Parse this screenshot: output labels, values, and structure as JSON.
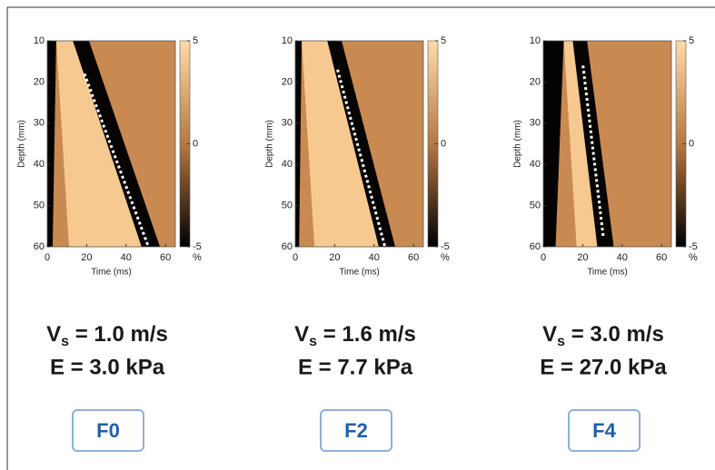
{
  "chart_data": [
    {
      "type": "heatmap",
      "xlabel": "Time (ms)",
      "ylabel": "Depth (mm)",
      "xlim": [
        0,
        65
      ],
      "ylim": [
        10,
        60
      ],
      "y_inverted": true,
      "xticks": [
        0,
        20,
        40,
        60
      ],
      "yticks": [
        10,
        20,
        30,
        40,
        50,
        60
      ],
      "clim": [
        -5,
        5
      ],
      "cticks": [
        5,
        0,
        -5
      ],
      "clabel": "%",
      "velocity_label": {
        "symbol": "V",
        "subscript": "s",
        "text": " = 1.0 m/s"
      },
      "modulus_label": "E = 3.0 kPa",
      "stage": "F0"
    },
    {
      "type": "heatmap",
      "xlabel": "Time (ms)",
      "ylabel": "Depth (mm)",
      "xlim": [
        0,
        65
      ],
      "ylim": [
        10,
        60
      ],
      "y_inverted": true,
      "xticks": [
        0,
        20,
        40,
        60
      ],
      "yticks": [
        10,
        20,
        30,
        40,
        50,
        60
      ],
      "clim": [
        -5,
        5
      ],
      "cticks": [
        5,
        0,
        -5
      ],
      "clabel": "%",
      "velocity_label": {
        "symbol": "V",
        "subscript": "s",
        "text": " = 1.6 m/s"
      },
      "modulus_label": "E = 7.7 kPa",
      "stage": "F2"
    },
    {
      "type": "heatmap",
      "xlabel": "Time (ms)",
      "ylabel": "Depth (mm)",
      "xlim": [
        0,
        65
      ],
      "ylim": [
        10,
        60
      ],
      "y_inverted": true,
      "xticks": [
        0,
        20,
        40,
        60
      ],
      "yticks": [
        10,
        20,
        30,
        40,
        50,
        60
      ],
      "clim": [
        -5,
        5
      ],
      "cticks": [
        5,
        0,
        -5
      ],
      "clabel": "%",
      "velocity_label": {
        "symbol": "V",
        "subscript": "s",
        "text": " = 3.0 m/s"
      },
      "modulus_label": "E = 27.0 kPa",
      "stage": "F4"
    }
  ]
}
